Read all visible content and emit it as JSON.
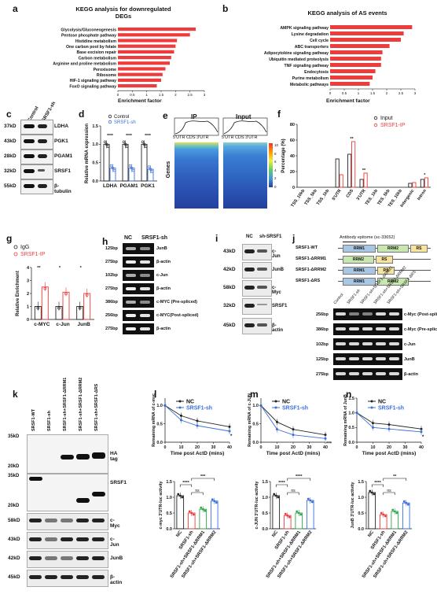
{
  "panels": {
    "a": {
      "label": "a",
      "title": "KEGG analysis for downregulated DEGs",
      "xlabel": "Enrichment factor"
    },
    "b": {
      "label": "b",
      "title": "KEGG analysis of AS events",
      "xlabel": "Enrichment factor"
    },
    "c": {
      "label": "c",
      "groups": [
        "Control",
        "SRSF1-sh"
      ],
      "rows": [
        {
          "size": "37kD",
          "protein": "LDHA"
        },
        {
          "size": "43kD",
          "protein": "PGK1"
        },
        {
          "size": "28kD",
          "protein": "PGAM1"
        },
        {
          "size": "32kD",
          "protein": "SRSF1"
        },
        {
          "size": "55kD",
          "protein": "β-tubulin"
        }
      ]
    },
    "d": {
      "label": "d"
    },
    "e": {
      "label": "e",
      "ip_label": "IP",
      "input_label": "Input",
      "axis_ticks": "5'UTR CDS 3'UTR",
      "genes_label": "Genes",
      "scale": [
        "10",
        "8",
        "6",
        "4",
        "2",
        "0"
      ]
    },
    "f": {
      "label": "f"
    },
    "g": {
      "label": "g"
    },
    "h": {
      "label": "h",
      "groups": [
        "NC",
        "SRSF1-sh"
      ],
      "rows": [
        {
          "size": "125bp",
          "name": "JunB"
        },
        {
          "size": "275bp",
          "name": "β-actin"
        },
        {
          "size": "102bp",
          "name": "c-Jun"
        },
        {
          "size": "275bp",
          "name": "β-actin"
        },
        {
          "size": "386bp",
          "name": "c-MYC (Pre-spliced)"
        },
        {
          "size": "256bp",
          "name": "c-MYC(Post-spliced)"
        },
        {
          "size": "275bp",
          "name": "β-actin"
        }
      ]
    },
    "i": {
      "label": "i",
      "groups": [
        "NC",
        "sh-SRSF1"
      ],
      "rows": [
        {
          "size": "43kD",
          "name": "c-Jun"
        },
        {
          "size": "42kD",
          "name": "JunB"
        },
        {
          "size": "58kD",
          "name": "c-Myc"
        },
        {
          "size": "32kD",
          "name": "SRSF1"
        },
        {
          "size": "45kD",
          "name": "β-actin"
        }
      ]
    },
    "j": {
      "label": "j",
      "epitope": "Antibody epitome (sc-33652)",
      "constructs": [
        {
          "name": "SRSF1-WT",
          "domains": [
            "RRM1",
            "RRM2",
            "RS"
          ]
        },
        {
          "name": "SRSF1-ΔRRM1",
          "domains": [
            "RRM2",
            "RS"
          ]
        },
        {
          "name": "SRSF1-ΔRRM2",
          "domains": [
            "RRM1",
            "RS"
          ]
        },
        {
          "name": "SRSF1-ΔRS",
          "domains": [
            "RRM1",
            "RRM2"
          ]
        }
      ],
      "lanes": [
        "Control",
        "SRSF1-sh",
        "SRSF1-sh+SRSF1-ΔRRM1",
        "SRSF1-sh+SRSF1-ΔRRM2",
        "SRSF1-sh+SRSF1-ΔRS"
      ],
      "rows": [
        {
          "size": "256bp",
          "name": "c-Myc (Post-spliced)"
        },
        {
          "size": "386bp",
          "name": "c-Myc (Pre-spliced)"
        },
        {
          "size": "102bp",
          "name": "c-Jun"
        },
        {
          "size": "125bp",
          "name": "JunB"
        },
        {
          "size": "275bp",
          "name": "β-actin"
        }
      ]
    },
    "k": {
      "label": "k",
      "lanes": [
        "SRSF1-WT",
        "SRSF1-sh",
        "SRSF1-sh+SRSF1-ΔRRM1",
        "SRSF1-sh+SRSF1-ΔRRM2",
        "SRSF1-sh+SRSF1-ΔRS"
      ],
      "blot1_sizes": [
        "35kD",
        "20kD"
      ],
      "blot1_name": "HA tag",
      "blot2_sizes": [
        "35kD",
        "20kD"
      ],
      "blot2_name": "SRSF1",
      "rows": [
        {
          "size": "58kD",
          "name": "c-Myc"
        },
        {
          "size": "43kD",
          "name": "c-Jun"
        },
        {
          "size": "42kD",
          "name": "JunB"
        },
        {
          "size": "45kD",
          "name": "β-actin"
        }
      ]
    },
    "l": {
      "label": "l"
    },
    "m": {
      "label": "m"
    },
    "n": {
      "label": "n"
    }
  },
  "chart_data": [
    {
      "id": "a",
      "type": "bar",
      "title": "KEGG analysis for downregulated DEGs",
      "xlabel": "Enrichment factor",
      "orientation": "horizontal",
      "color": "#ee3b3b",
      "categories": [
        "Glycolysis/Gluconeogenesis",
        "Pentose phosphate pathway",
        "Histidine metabolism",
        "One carbon pool by folate",
        "Base excision repair",
        "Carbon metabolism",
        "Arginine and proline metabolism",
        "Peroxisome",
        "Ribosome",
        "HIF-1 signaling pathway",
        "FoxO signaling pathway"
      ],
      "values": [
        2.7,
        2.5,
        2.05,
        2.0,
        1.95,
        1.85,
        1.8,
        1.65,
        1.55,
        1.5,
        1.35
      ],
      "xticks": [
        "0",
        "0.5",
        "1",
        "1.5",
        "2",
        "2.5",
        "3"
      ],
      "xlim": [
        0,
        3
      ]
    },
    {
      "id": "b",
      "type": "bar",
      "title": "KEGG analysis of AS events",
      "xlabel": "Enrichment factor",
      "orientation": "horizontal",
      "color": "#ee3b3b",
      "categories": [
        "AMPK signaling pathway",
        "Lysine degradation",
        "Cell cycle",
        "ABC transporters",
        "Adipocytokine signaling pathway",
        "Ubiquitin mediated proteolysis",
        "TNF signaling pathway",
        "Endocytosis",
        "Purine metabolism",
        "Metabolic pathways"
      ],
      "values": [
        2.9,
        2.6,
        2.5,
        2.1,
        1.85,
        1.8,
        1.8,
        1.6,
        1.5,
        1.4
      ],
      "xticks": [
        "0",
        "0.5",
        "1",
        "1.5",
        "2",
        "2.5",
        "3"
      ],
      "xlim": [
        0,
        3
      ]
    },
    {
      "id": "d",
      "type": "bar",
      "ylabel": "Relative mRNA expression",
      "categories": [
        "LDHA",
        "PGAM1",
        "PGK1"
      ],
      "series": [
        {
          "name": "Control",
          "values": [
            1.0,
            1.0,
            1.0
          ],
          "color": "#222222"
        },
        {
          "name": "SRSF1-sh",
          "values": [
            0.35,
            0.35,
            0.32
          ],
          "color": "#3a6fd8"
        }
      ],
      "ylim": [
        0,
        1.5
      ],
      "yticks": [
        "0.0",
        "0.5",
        "1.0",
        "1.5"
      ],
      "significance": [
        "****",
        "****",
        "****"
      ]
    },
    {
      "id": "f",
      "type": "bar",
      "ylabel": "Percentage (%)",
      "categories": [
        "TSS_10kb",
        "TSS_5kb",
        "TSS_1kb",
        "5'UTR",
        "CDS",
        "3'UTR",
        "TES_1kb",
        "TES_5kb",
        "TES_10kb",
        "Intergenic",
        "Intron"
      ],
      "series": [
        {
          "name": "Input",
          "values": [
            0,
            0,
            0,
            36,
            42,
            10,
            0,
            0,
            0,
            5,
            10
          ],
          "color": "#222222"
        },
        {
          "name": "SRSF1-IP",
          "values": [
            0,
            0,
            0,
            16,
            58,
            18,
            0,
            0,
            0,
            6,
            12
          ],
          "color": "#ee3b3b"
        }
      ],
      "ylim": [
        0,
        80
      ],
      "yticks": [
        "0",
        "20",
        "40",
        "60",
        "80"
      ],
      "annotations": [
        "**",
        "**",
        "*"
      ]
    },
    {
      "id": "g",
      "type": "bar",
      "ylabel": "Relative Enrichment",
      "categories": [
        "c-MYC",
        "c-Jun",
        "JunB"
      ],
      "series": [
        {
          "name": "IgG",
          "values": [
            1.0,
            1.0,
            1.0
          ],
          "color": "#222222"
        },
        {
          "name": "SRSF1-IP",
          "values": [
            2.5,
            2.1,
            2.0
          ],
          "color": "#ee3b3b"
        }
      ],
      "ylim": [
        0,
        4
      ],
      "yticks": [
        "0",
        "1",
        "2",
        "3",
        "4"
      ],
      "significance": [
        "**",
        "*",
        "*"
      ]
    },
    {
      "id": "l",
      "type": "line",
      "xlabel": "Time post ActD (mins)",
      "ylabel": "Remaining mRNA of c-myc",
      "x": [
        0,
        10,
        20,
        40
      ],
      "series": [
        {
          "name": "NC",
          "values": [
            1.0,
            0.72,
            0.58,
            0.42
          ],
          "color": "#222222"
        },
        {
          "name": "SRSF1-sh",
          "values": [
            1.0,
            0.6,
            0.45,
            0.3
          ],
          "color": "#3a6fd8"
        }
      ],
      "xlim": [
        0,
        40
      ],
      "ylim": [
        0,
        1.2
      ],
      "xticks": [
        "0",
        "10",
        "20",
        "30",
        "40"
      ],
      "yticks": [
        "0.0",
        "0.5",
        "1.0"
      ],
      "annotation": "*"
    },
    {
      "id": "m",
      "type": "line",
      "xlabel": "Time post ActD (mins)",
      "ylabel": "Remaining mRNA of c-JUN",
      "x": [
        0,
        10,
        20,
        40
      ],
      "series": [
        {
          "name": "NC",
          "values": [
            1.0,
            0.55,
            0.35,
            0.2
          ],
          "color": "#222222"
        },
        {
          "name": "SRSF1-sh",
          "values": [
            1.0,
            0.35,
            0.2,
            0.1
          ],
          "color": "#3a6fd8"
        }
      ],
      "xlim": [
        0,
        40
      ],
      "ylim": [
        0,
        1.2
      ],
      "xticks": [
        "0",
        "10",
        "20",
        "30",
        "40"
      ],
      "yticks": [
        "0.0",
        "0.5",
        "1.0"
      ],
      "annotation": "***"
    },
    {
      "id": "n",
      "type": "line",
      "xlabel": "Time post ActD (mins)",
      "ylabel": "Remaining mRNA of JunB",
      "x": [
        0,
        10,
        20,
        40
      ],
      "series": [
        {
          "name": "NC",
          "values": [
            1.0,
            0.65,
            0.6,
            0.45
          ],
          "color": "#222222"
        },
        {
          "name": "SRSF1-sh",
          "values": [
            1.0,
            0.5,
            0.45,
            0.35
          ],
          "color": "#3a6fd8"
        }
      ],
      "xlim": [
        0,
        40
      ],
      "ylim": [
        0,
        1.5
      ],
      "xticks": [
        "0",
        "10",
        "20",
        "30",
        "40"
      ],
      "yticks": [
        "0.0",
        "0.5",
        "1.0",
        "1.5"
      ],
      "annotation": "*"
    },
    {
      "id": "l2",
      "type": "bar",
      "ylabel": "c-myc 3'UTR-luc activity",
      "categories": [
        "NC",
        "SRSF1-sh",
        "SRSF1-sh+SRSF1-ΔRRM1",
        "SRSF1-sh+SRSF1-ΔRRM2"
      ],
      "values": [
        1.05,
        0.5,
        0.62,
        0.88
      ],
      "colors": [
        "#222222",
        "#ee3b3b",
        "#2aa84a",
        "#3a6fd8"
      ],
      "ylim": [
        0,
        1.5
      ],
      "yticks": [
        "0.0",
        "0.5",
        "1.0",
        "1.5"
      ],
      "significance": [
        "****",
        "ns",
        "***"
      ]
    },
    {
      "id": "m2",
      "type": "bar",
      "ylabel": "c-JUN 3'UTR-luc activity",
      "categories": [
        "NC",
        "SRSF1-sh",
        "SRSF1-sh+SRSF1-ΔRRM1",
        "SRSF1-sh+SRSF1-ΔRRM2"
      ],
      "values": [
        1.05,
        0.42,
        0.5,
        0.9
      ],
      "colors": [
        "#222222",
        "#ee3b3b",
        "#2aa84a",
        "#3a6fd8"
      ],
      "ylim": [
        0,
        1.5
      ],
      "yticks": [
        "0.0",
        "0.5",
        "1.0",
        "1.5"
      ],
      "significance": [
        "****",
        "ns",
        "****"
      ]
    },
    {
      "id": "n2",
      "type": "bar",
      "ylabel": "JunB 3'UTR-luc activity",
      "categories": [
        "NC",
        "SRSF1-sh",
        "SRSF1-sh+SRSF1-ΔRRM1",
        "SRSF1-sh+SRSF1-ΔRRM2"
      ],
      "values": [
        1.15,
        0.45,
        0.55,
        0.82
      ],
      "colors": [
        "#222222",
        "#ee3b3b",
        "#2aa84a",
        "#3a6fd8"
      ],
      "ylim": [
        0,
        1.5
      ],
      "yticks": [
        "0.0",
        "0.5",
        "1.0",
        "1.5"
      ],
      "significance": [
        "****",
        "ns",
        "**"
      ]
    }
  ]
}
